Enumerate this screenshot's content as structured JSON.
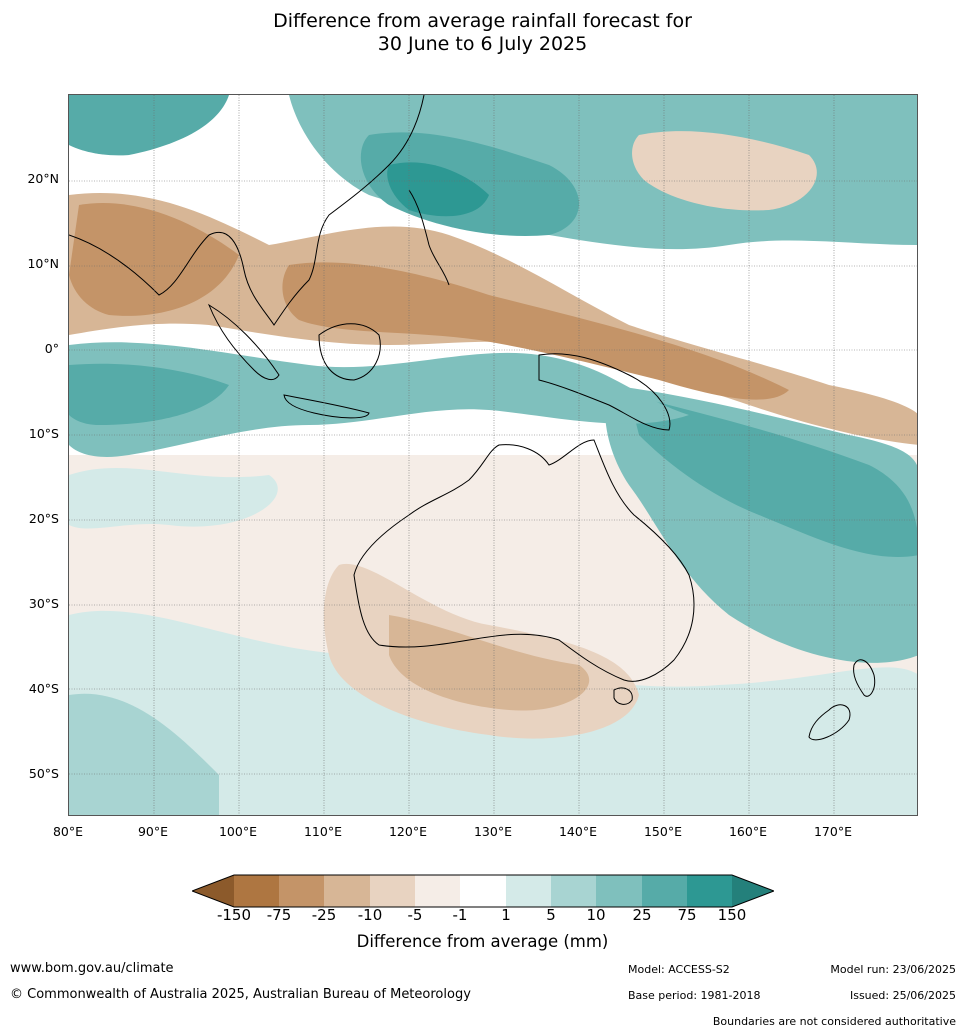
{
  "title_line1": "Difference from average rainfall forecast for",
  "title_line2": "30 June to 6 July 2025",
  "lat_labels": [
    "20°N",
    "10°N",
    "0°",
    "10°S",
    "20°S",
    "30°S",
    "40°S",
    "50°S"
  ],
  "lon_labels": [
    "80°E",
    "90°E",
    "100°E",
    "110°E",
    "120°E",
    "130°E",
    "140°E",
    "150°E",
    "160°E",
    "170°E"
  ],
  "legend": {
    "title": "Difference from average (mm)",
    "ticks": [
      "-150",
      "-75",
      "-25",
      "-10",
      "-5",
      "-1",
      "1",
      "5",
      "10",
      "25",
      "75",
      "150"
    ],
    "colors": [
      "#8c5a2b",
      "#ae7641",
      "#c49468",
      "#d7b696",
      "#e8d3c1",
      "#f5ede7",
      "#ffffff",
      "#d4eae8",
      "#a8d4d2",
      "#7fc0bd",
      "#56aba8",
      "#2d9893",
      "#24807b"
    ]
  },
  "footer": {
    "url": "www.bom.gov.au/climate",
    "copyright": "© Commonwealth of Australia 2025, Australian Bureau of Meteorology",
    "model": "Model: ACCESS-S2",
    "base_period": "Base period: 1981-2018",
    "model_run": "Model run: 23/06/2025",
    "issued": "Issued: 25/06/2025",
    "disclaimer": "Boundaries are not considered authoritative"
  }
}
